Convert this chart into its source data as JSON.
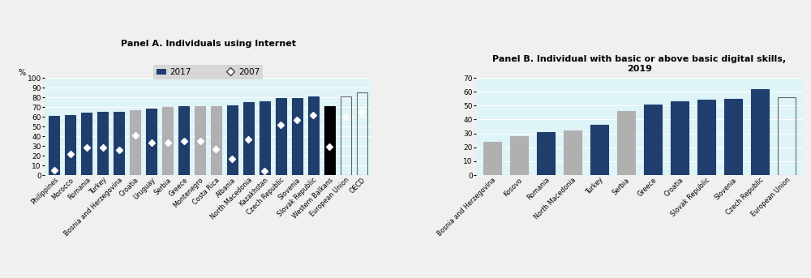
{
  "panelA": {
    "title": "Panel A. Individuals using Internet",
    "percent_label": "%",
    "ylim": [
      0,
      100
    ],
    "yticks": [
      0,
      10,
      20,
      30,
      40,
      50,
      60,
      70,
      80,
      90,
      100
    ],
    "categories": [
      "Philippines",
      "Morocco",
      "Romania",
      "Turkey",
      "Bosnia and Herzegovina",
      "Croatia",
      "Uruguay",
      "Serbia",
      "Greece",
      "Montenegro",
      "Costa Rica",
      "Albania",
      "North Macedonia",
      "Kazakhstan",
      "Czech Republic",
      "Slovenia",
      "Slovak Republic",
      "Western Balkans",
      "European Union",
      "OECD"
    ],
    "bar2017": [
      61,
      62,
      64,
      65,
      65,
      67,
      68,
      70,
      71,
      71,
      71,
      72,
      75,
      76,
      79,
      79,
      81,
      71,
      81,
      85
    ],
    "diamond2007": [
      5,
      22,
      28,
      28,
      26,
      41,
      33,
      33,
      35,
      35,
      27,
      17,
      37,
      4,
      52,
      57,
      62,
      29,
      60,
      65
    ],
    "bar_colors": [
      "#1f3e6e",
      "#1f3e6e",
      "#1f3e6e",
      "#1f3e6e",
      "#1f3e6e",
      "#b0b0b0",
      "#1f3e6e",
      "#b0b0b0",
      "#1f3e6e",
      "#b0b0b0",
      "#b0b0b0",
      "#1f3e6e",
      "#1f3e6e",
      "#1f3e6e",
      "#1f3e6e",
      "#1f3e6e",
      "#1f3e6e",
      "#000000",
      "none",
      "none"
    ],
    "bar_edgecolors": [
      "#1f3e6e",
      "#1f3e6e",
      "#1f3e6e",
      "#1f3e6e",
      "#1f3e6e",
      "#b0b0b0",
      "#1f3e6e",
      "#b0b0b0",
      "#1f3e6e",
      "#b0b0b0",
      "#b0b0b0",
      "#1f3e6e",
      "#1f3e6e",
      "#1f3e6e",
      "#1f3e6e",
      "#1f3e6e",
      "#1f3e6e",
      "#000000",
      "#666666",
      "#666666"
    ],
    "legend_bar_color": "#1f3e6e",
    "legend_bg": "#d0d0d0",
    "bg_color": "#dff4f7"
  },
  "panelB": {
    "title": "Panel B. Individual with basic or above basic digital skills,\n2019",
    "ylim": [
      0,
      70
    ],
    "yticks": [
      0,
      10,
      20,
      30,
      40,
      50,
      60,
      70
    ],
    "categories": [
      "Bosnia and Herzegovina",
      "Kosovo",
      "Romania",
      "North Macedonia",
      "Turkey",
      "Serbia",
      "Greece",
      "Croatia",
      "Slovak Republic",
      "Slovenia",
      "Czech Republic",
      "European Union"
    ],
    "values": [
      24,
      28,
      31,
      32,
      36,
      46,
      51,
      53,
      54,
      55,
      62,
      56
    ],
    "bar_colors": [
      "#b0b0b0",
      "#b0b0b0",
      "#1f3e6e",
      "#b0b0b0",
      "#1f3e6e",
      "#b0b0b0",
      "#1f3e6e",
      "#1f3e6e",
      "#1f3e6e",
      "#1f3e6e",
      "#1f3e6e",
      "none"
    ],
    "bar_edgecolors": [
      "#b0b0b0",
      "#b0b0b0",
      "#1f3e6e",
      "#b0b0b0",
      "#1f3e6e",
      "#b0b0b0",
      "#1f3e6e",
      "#1f3e6e",
      "#1f3e6e",
      "#1f3e6e",
      "#1f3e6e",
      "#666666"
    ],
    "bg_color": "#dff4f7"
  },
  "fig_bg": "#f0f0f0"
}
